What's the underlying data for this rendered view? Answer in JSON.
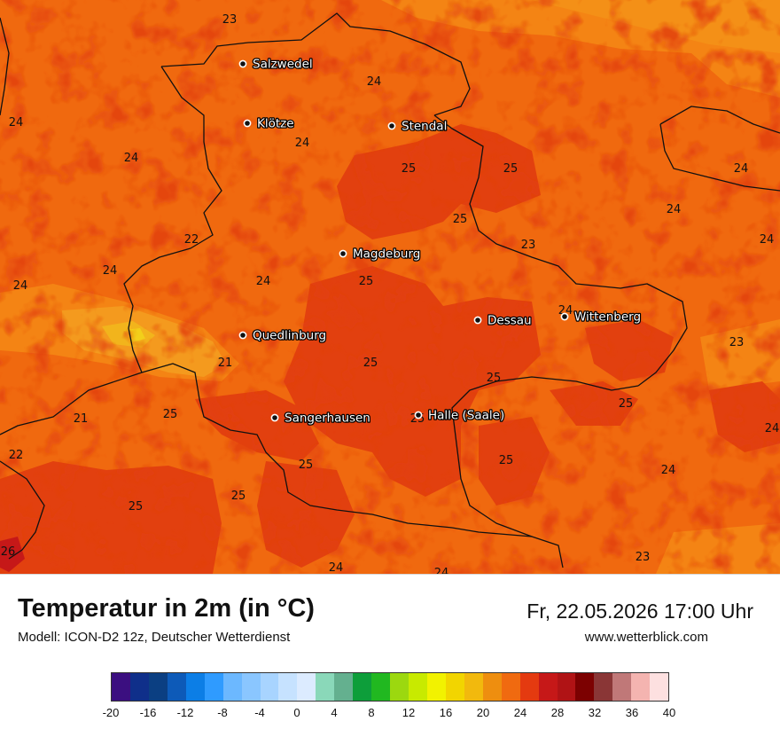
{
  "map": {
    "cities": [
      {
        "name": "Salzwedel"
      },
      {
        "name": "Klötze"
      },
      {
        "name": "Stendal"
      },
      {
        "name": "Magdeburg"
      },
      {
        "name": "Quedlinburg"
      },
      {
        "name": "Dessau"
      },
      {
        "name": "Wittenberg"
      },
      {
        "name": "Sangerhausen"
      },
      {
        "name": "Halle (Saale)"
      }
    ],
    "values": [
      "23",
      "24",
      "24",
      "24",
      "24",
      "25",
      "25",
      "25",
      "24",
      "24",
      "22",
      "23",
      "24",
      "24",
      "24",
      "24",
      "25",
      "24",
      "23",
      "21",
      "25",
      "25",
      "25",
      "21",
      "25",
      "25",
      "22",
      "25",
      "25",
      "24",
      "24",
      "25",
      "26",
      "25",
      "24",
      "23"
    ]
  },
  "footer": {
    "title": "Temperatur in 2m (in °C)",
    "model": "Modell: ICON-D2 12z, Deutscher Wetterdienst",
    "datetime": "Fr, 22.05.2026 17:00 Uhr",
    "website": "www.wetterblick.com"
  },
  "legend": {
    "colors": [
      "#3b0f80",
      "#0f2f8a",
      "#0b3f82",
      "#0d5ab8",
      "#0c7ee6",
      "#2f9bff",
      "#6cb8ff",
      "#8ac6ff",
      "#a8d4ff",
      "#c6e2ff",
      "#dcebff",
      "#8ad8b9",
      "#64b08f",
      "#0d9e3a",
      "#21b820",
      "#9cd80f",
      "#c8ea00",
      "#f2f200",
      "#f2d500",
      "#f2b90d",
      "#ee8e0f",
      "#f06a10",
      "#e43a10",
      "#c61818",
      "#b01315",
      "#7c0101",
      "#8a3636",
      "#c07878",
      "#f4b4b0",
      "#fde0e0"
    ],
    "ticks": [
      "-20",
      "-16",
      "-12",
      "-8",
      "-4",
      "0",
      "4",
      "8",
      "12",
      "16",
      "20",
      "24",
      "28",
      "32",
      "36",
      "40"
    ]
  }
}
